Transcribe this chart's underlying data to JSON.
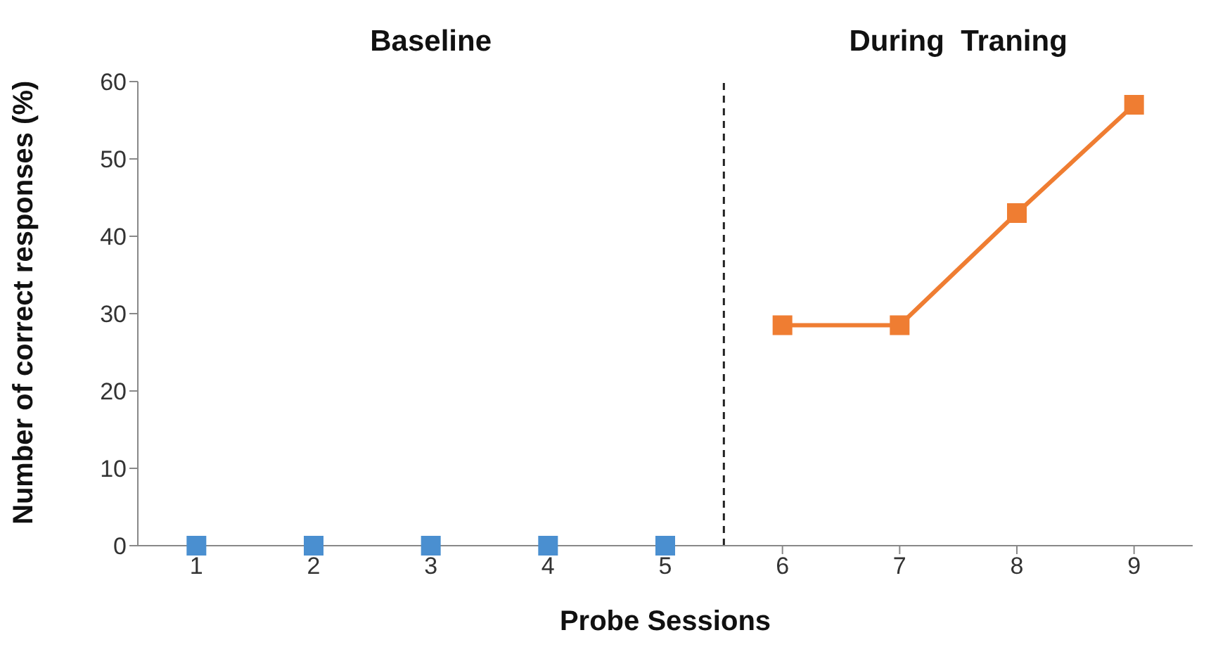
{
  "chart_data": {
    "type": "line",
    "xlabel": "Probe Sessions",
    "ylabel": "Number of correct responses (%)",
    "annotations": [
      "Baseline",
      "During  Traning"
    ],
    "xlim": [
      0.5,
      9.5
    ],
    "xticks": [
      1,
      2,
      3,
      4,
      5,
      6,
      7,
      8,
      9
    ],
    "ylim": [
      0,
      60
    ],
    "yticks": [
      0,
      10,
      20,
      30,
      40,
      50,
      60
    ],
    "series": [
      {
        "type": "scatter",
        "color": "#4a8fd0",
        "x": [
          1,
          2,
          3,
          4,
          5
        ],
        "values": [
          0,
          0,
          0,
          0,
          0
        ]
      },
      {
        "color": "#ef7d32",
        "x": [
          6,
          7,
          8,
          9
        ],
        "values": [
          28.5,
          28.5,
          43,
          57
        ]
      }
    ],
    "ref_lines": [
      {
        "axis": "x",
        "value": 5.5,
        "label": null,
        "color": "#222222",
        "line_style": "dashed"
      }
    ],
    "marker": "square",
    "grid": false,
    "legend": false,
    "line_style": "solid"
  }
}
